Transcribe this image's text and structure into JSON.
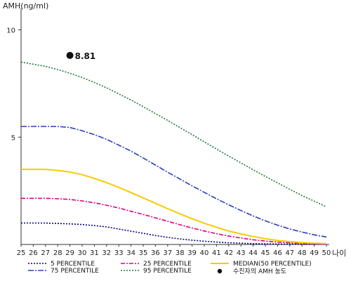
{
  "chart_data": {
    "type": "line",
    "ylabel": "AMH(ng/ml)",
    "xlabel": "나이",
    "xlim": [
      25,
      50
    ],
    "ylim": [
      0,
      11
    ],
    "yticks": [
      5,
      10
    ],
    "xticks": [
      25,
      26,
      27,
      28,
      29,
      30,
      31,
      32,
      33,
      34,
      35,
      36,
      37,
      38,
      39,
      40,
      41,
      42,
      43,
      44,
      45,
      46,
      47,
      48,
      49,
      50
    ],
    "x": [
      25,
      26,
      27,
      28,
      29,
      30,
      31,
      32,
      33,
      34,
      35,
      36,
      37,
      38,
      39,
      40,
      41,
      42,
      43,
      44,
      45,
      46,
      47,
      48,
      49,
      50
    ],
    "series": [
      {
        "name": "5 PERCENTILE",
        "color": "#000080",
        "dash": "2,2",
        "values": [
          1.0,
          1.0,
          1.0,
          0.98,
          0.96,
          0.93,
          0.88,
          0.82,
          0.72,
          0.62,
          0.52,
          0.42,
          0.33,
          0.26,
          0.2,
          0.15,
          0.11,
          0.08,
          0.06,
          0.04,
          0.03,
          0.02,
          0.02,
          0.01,
          0.01,
          0.01
        ]
      },
      {
        "name": "25 PERCENTILE",
        "color": "#e0007f",
        "dash": "6,2,2,2",
        "values": [
          2.15,
          2.15,
          2.15,
          2.13,
          2.1,
          2.03,
          1.94,
          1.83,
          1.7,
          1.55,
          1.4,
          1.24,
          1.08,
          0.92,
          0.77,
          0.63,
          0.5,
          0.39,
          0.3,
          0.22,
          0.16,
          0.11,
          0.08,
          0.05,
          0.03,
          0.02
        ]
      },
      {
        "name": "MEDIAN(50 PERCENTILE)",
        "color": "#f5cc00",
        "dash": "",
        "values": [
          3.5,
          3.5,
          3.5,
          3.45,
          3.38,
          3.25,
          3.08,
          2.88,
          2.66,
          2.42,
          2.17,
          1.92,
          1.67,
          1.43,
          1.2,
          0.99,
          0.8,
          0.63,
          0.49,
          0.37,
          0.27,
          0.19,
          0.13,
          0.09,
          0.06,
          0.04
        ]
      },
      {
        "name": "75 PERCENTILE",
        "color": "#2a3fb5",
        "dash": "8,2,2,2",
        "values": [
          5.5,
          5.5,
          5.5,
          5.5,
          5.45,
          5.3,
          5.12,
          4.9,
          4.63,
          4.35,
          4.03,
          3.7,
          3.37,
          3.05,
          2.73,
          2.43,
          2.13,
          1.85,
          1.58,
          1.33,
          1.1,
          0.9,
          0.72,
          0.58,
          0.45,
          0.35
        ]
      },
      {
        "name": "95 PERCENTILE",
        "color": "#1f7a3a",
        "dash": "2,2",
        "values": [
          8.5,
          8.4,
          8.3,
          8.15,
          7.98,
          7.78,
          7.55,
          7.3,
          7.02,
          6.73,
          6.42,
          6.1,
          5.78,
          5.45,
          5.12,
          4.78,
          4.45,
          4.12,
          3.8,
          3.48,
          3.17,
          2.87,
          2.57,
          2.28,
          2.02,
          1.75
        ]
      }
    ],
    "annotations": [
      {
        "label": "수진자의 AMH 농도",
        "x": 29,
        "y": 8.81,
        "text": "8.81"
      }
    ],
    "legend_placement": "bottom",
    "grid": false
  }
}
